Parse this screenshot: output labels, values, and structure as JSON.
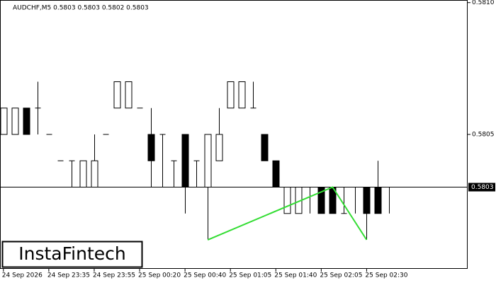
{
  "chart_data": {
    "type": "candlestick",
    "title": "AUDCHF,M5  0.5803 0.5803 0.5802 0.5803",
    "brand": "InstaFintech",
    "open": [
      0.5805,
      0.5805,
      0.5806,
      0.5806,
      0.5805,
      0.5804,
      0.5804,
      0.5803,
      0.5803,
      0.5805,
      0.5806,
      0.5806,
      0.5806,
      0.5805,
      0.5805,
      0.5804,
      0.5805,
      0.5804,
      0.5803,
      0.5804,
      0.5806,
      0.5806,
      0.5806,
      0.5805,
      0.5804,
      0.5802,
      0.5802,
      0.5803,
      0.5803,
      0.5803,
      0.5802,
      0.5803,
      0.5803,
      0.5803,
      0.5803
    ],
    "high": [
      0.5806,
      0.5806,
      0.5806,
      0.5807,
      0.5805,
      0.5804,
      0.5804,
      0.5804,
      0.5805,
      0.5805,
      0.5807,
      0.5807,
      0.5806,
      0.5806,
      0.5805,
      0.5804,
      0.5805,
      0.5804,
      0.5805,
      0.5806,
      0.5807,
      0.5807,
      0.5807,
      0.5805,
      0.5804,
      0.5803,
      0.5803,
      0.5803,
      0.5803,
      0.5803,
      0.5803,
      0.5803,
      0.5803,
      0.5804,
      0.5803
    ],
    "low": [
      0.5805,
      0.5805,
      0.5805,
      0.5805,
      0.5805,
      0.5804,
      0.5803,
      0.5803,
      0.5803,
      0.5805,
      0.5806,
      0.5806,
      0.5806,
      0.5803,
      0.5803,
      0.5803,
      0.5802,
      0.5803,
      0.5801,
      0.5804,
      0.5806,
      0.5806,
      0.5806,
      0.5804,
      0.5803,
      0.5802,
      0.5802,
      0.5802,
      0.5802,
      0.5802,
      0.5802,
      0.5802,
      0.5801,
      0.5802,
      0.5802
    ],
    "close": [
      0.5806,
      0.5806,
      0.5805,
      0.5806,
      0.5805,
      0.5804,
      0.5804,
      0.5804,
      0.5804,
      0.5805,
      0.5807,
      0.5807,
      0.5806,
      0.5804,
      0.5805,
      0.5804,
      0.5803,
      0.5804,
      0.5805,
      0.5805,
      0.5807,
      0.5807,
      0.5806,
      0.5804,
      0.5803,
      0.5803,
      0.5803,
      0.5803,
      0.5802,
      0.5802,
      0.5802,
      0.5803,
      0.5802,
      0.5802,
      0.5803
    ],
    "pattern": {
      "color": "#33dd33",
      "x": [
        18,
        29,
        32
      ],
      "values": [
        0.5801,
        0.5803,
        0.5801
      ]
    },
    "last_price": 0.5803,
    "xlim": [
      -0.3,
      40.9
    ],
    "ylim": [
      0.57999,
      0.58101
    ],
    "yticks": [
      {
        "value": 0.581,
        "label": "0.5810"
      },
      0.5805
    ],
    "xticks": [
      {
        "value": 0,
        "label": "24 Sep 2026"
      },
      {
        "value": 4,
        "label": "24 Sep 23:35"
      },
      {
        "value": 8,
        "label": "24 Sep 23:55"
      },
      {
        "value": 12,
        "label": "25 Sep 00:20"
      },
      {
        "value": 16,
        "label": "25 Sep 00:40"
      },
      {
        "value": 20,
        "label": "25 Sep 01:05"
      },
      {
        "value": 24,
        "label": "25 Sep 01:40"
      },
      {
        "value": 28,
        "label": "25 Sep 02:05"
      },
      {
        "value": 32,
        "label": "25 Sep 02:30"
      }
    ]
  }
}
